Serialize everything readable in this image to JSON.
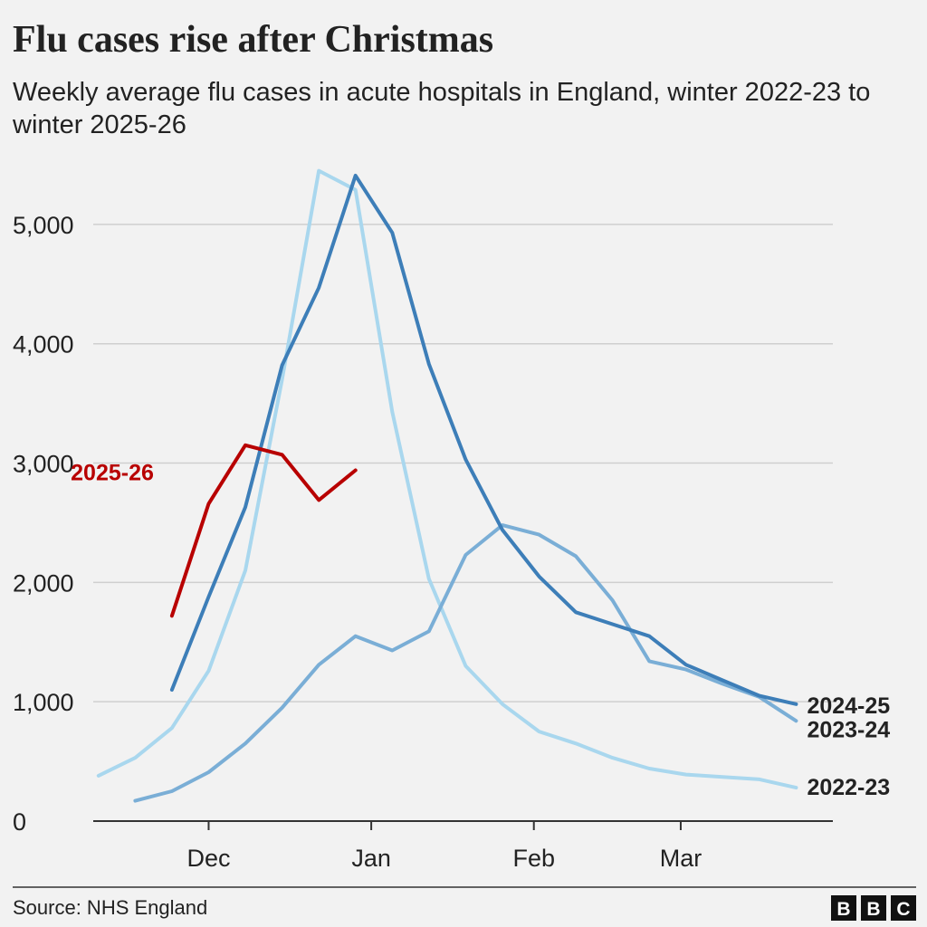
{
  "chart_data": {
    "type": "line",
    "title": "Flu cases rise after Christmas",
    "subtitle": "Weekly average flu cases in acute hospitals in England, winter 2022-23 to winter 2025-26",
    "source": "Source: NHS England",
    "logo": [
      "B",
      "B",
      "C"
    ],
    "x": [
      -21,
      -14,
      -7,
      0,
      7,
      14,
      21,
      28,
      35,
      42,
      49,
      56,
      63,
      70,
      77,
      84,
      91,
      98,
      105,
      112
    ],
    "xlim": [
      -22,
      119
    ],
    "xticks": [
      {
        "value": 0,
        "label": "Dec"
      },
      {
        "value": 31,
        "label": "Jan"
      },
      {
        "value": 62,
        "label": "Feb"
      },
      {
        "value": 90,
        "label": "Mar"
      }
    ],
    "ylim": [
      0,
      5500
    ],
    "yticks": [
      0,
      {
        "value": 1000,
        "label": "1,000"
      },
      {
        "value": 2000,
        "label": "2,000"
      },
      {
        "value": 3000,
        "label": "3,000"
      },
      {
        "value": 4000,
        "label": "4,000"
      },
      {
        "value": 5000,
        "label": "5,000"
      }
    ],
    "grid": true,
    "series": [
      {
        "name": "2022-23",
        "color": "#a9d7ee",
        "values": [
          380,
          530,
          780,
          1260,
          2100,
          3700,
          5450,
          5290,
          3430,
          2030,
          1300,
          980,
          750,
          650,
          530,
          440,
          390,
          370,
          350,
          280
        ]
      },
      {
        "name": "2023-24",
        "color": "#7aaed6",
        "values": [
          null,
          170,
          250,
          410,
          650,
          950,
          1310,
          1550,
          1430,
          1590,
          2230,
          2480,
          2400,
          2220,
          1850,
          1340,
          1270,
          1150,
          1040,
          840
        ]
      },
      {
        "name": "2024-25",
        "color": "#3d7eb8",
        "values": [
          null,
          null,
          1100,
          1880,
          2630,
          3820,
          4470,
          5410,
          4930,
          3830,
          3030,
          2440,
          2050,
          1750,
          1650,
          1550,
          1310,
          1180,
          1050,
          980
        ]
      },
      {
        "name": "2025-26",
        "color": "#b80000",
        "values": [
          null,
          null,
          1720,
          2660,
          3150,
          3070,
          2690,
          2940,
          null,
          null,
          null,
          null,
          null,
          null,
          null,
          null,
          null,
          null,
          null,
          null
        ]
      }
    ]
  }
}
